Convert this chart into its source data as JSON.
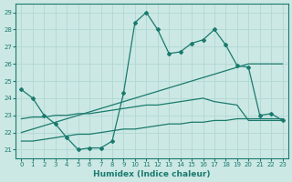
{
  "xlabel": "Humidex (Indice chaleur)",
  "background_color": "#cce8e4",
  "grid_color": "#b0d8d4",
  "line_color": "#1a7a6e",
  "ylim": [
    20.5,
    29.5
  ],
  "xlim": [
    -0.5,
    23.5
  ],
  "yticks": [
    21,
    22,
    23,
    24,
    25,
    26,
    27,
    28,
    29
  ],
  "xticks": [
    0,
    1,
    2,
    3,
    4,
    5,
    6,
    7,
    8,
    9,
    10,
    11,
    12,
    13,
    14,
    15,
    16,
    17,
    18,
    19,
    20,
    21,
    22,
    23
  ],
  "line_main_x": [
    0,
    1,
    2,
    3,
    4,
    5,
    6,
    7,
    8,
    9,
    10,
    11,
    12,
    13,
    14,
    15,
    16,
    17,
    18,
    19,
    20,
    21,
    22,
    23
  ],
  "line_main_y": [
    24.5,
    24.0,
    23.0,
    22.5,
    21.7,
    21.0,
    21.1,
    21.1,
    21.5,
    24.3,
    28.4,
    29.0,
    28.0,
    26.6,
    26.7,
    27.2,
    27.4,
    28.0,
    27.1,
    25.9,
    25.8,
    23.0,
    23.1,
    22.7
  ],
  "line_upper_x": [
    0,
    1,
    2,
    3,
    4,
    5,
    6,
    7,
    8,
    9,
    10,
    11,
    12,
    13,
    14,
    15,
    16,
    17,
    18,
    19,
    20,
    21,
    22,
    23
  ],
  "line_upper_y": [
    22.0,
    22.2,
    22.4,
    22.6,
    22.8,
    23.0,
    23.2,
    23.4,
    23.6,
    23.8,
    24.0,
    24.2,
    24.4,
    24.6,
    24.8,
    25.0,
    25.2,
    25.4,
    25.6,
    25.8,
    26.0,
    26.0,
    26.0,
    26.0
  ],
  "line_mid_x": [
    0,
    1,
    2,
    3,
    4,
    5,
    6,
    7,
    8,
    9,
    10,
    11,
    12,
    13,
    14,
    15,
    16,
    17,
    18,
    19,
    20,
    21,
    22,
    23
  ],
  "line_mid_y": [
    22.8,
    22.9,
    22.9,
    23.0,
    23.0,
    23.1,
    23.1,
    23.2,
    23.3,
    23.4,
    23.5,
    23.6,
    23.6,
    23.7,
    23.8,
    23.9,
    24.0,
    23.8,
    23.7,
    23.6,
    22.7,
    22.7,
    22.7,
    22.7
  ],
  "line_lower_x": [
    0,
    1,
    2,
    3,
    4,
    5,
    6,
    7,
    8,
    9,
    10,
    11,
    12,
    13,
    14,
    15,
    16,
    17,
    18,
    19,
    20,
    21,
    22,
    23
  ],
  "line_lower_y": [
    21.5,
    21.5,
    21.6,
    21.7,
    21.8,
    21.9,
    21.9,
    22.0,
    22.1,
    22.2,
    22.2,
    22.3,
    22.4,
    22.5,
    22.5,
    22.6,
    22.6,
    22.7,
    22.7,
    22.8,
    22.8,
    22.8,
    22.8,
    22.8
  ]
}
